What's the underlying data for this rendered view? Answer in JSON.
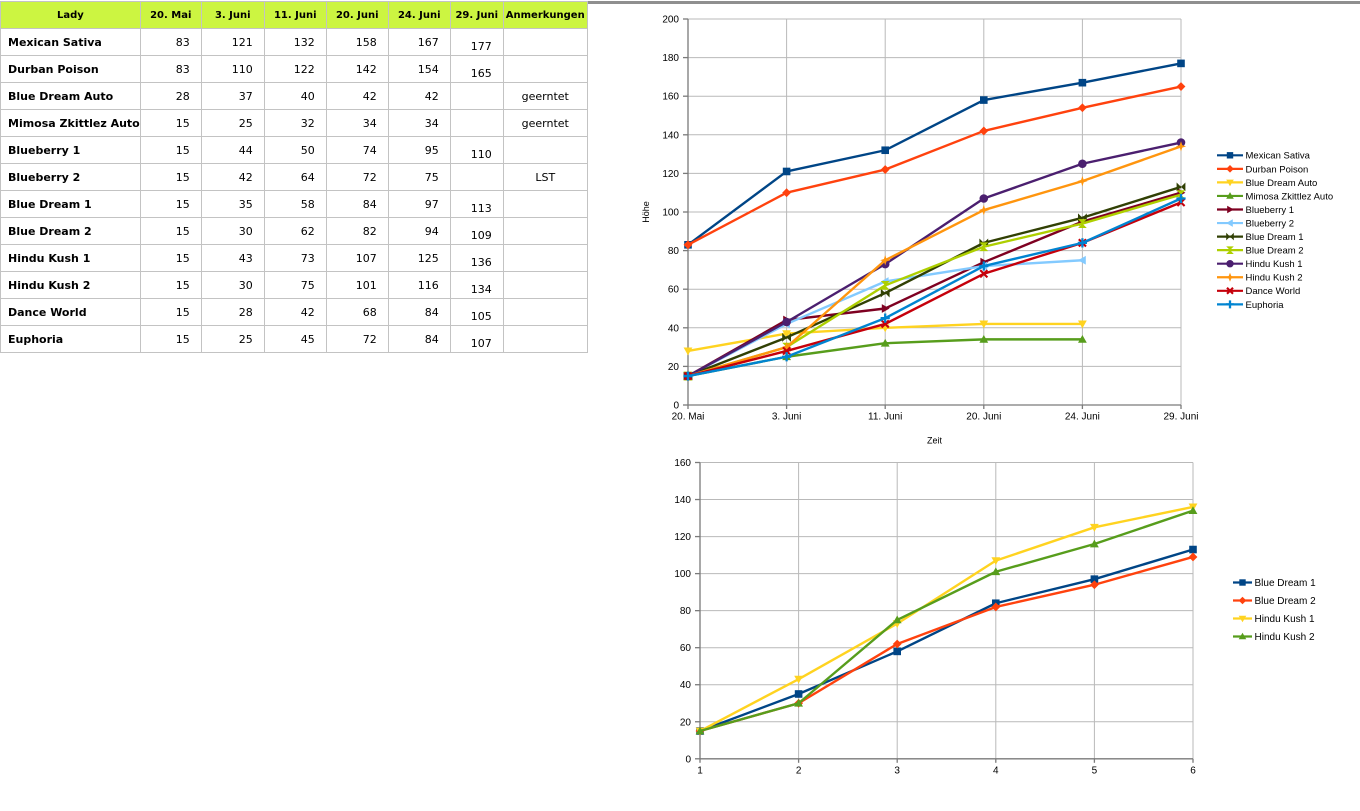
{
  "table": {
    "header_bg": "#ccf541",
    "columns": [
      "Lady",
      "20. Mai",
      "3. Juni",
      "11. Juni",
      "20. Juni",
      "24. Juni",
      "29. Juni",
      "Anmerkungen"
    ],
    "rows": [
      {
        "lady": "Mexican Sativa",
        "values": [
          83,
          121,
          132,
          158,
          167,
          177
        ],
        "anmerkung": ""
      },
      {
        "lady": "Durban Poison",
        "values": [
          83,
          110,
          122,
          142,
          154,
          165
        ],
        "anmerkung": ""
      },
      {
        "lady": "Blue Dream Auto",
        "values": [
          28,
          37,
          40,
          42,
          42,
          null
        ],
        "anmerkung": "geerntet"
      },
      {
        "lady": "Mimosa Zkittlez Auto",
        "values": [
          15,
          25,
          32,
          34,
          34,
          null
        ],
        "anmerkung": "geerntet"
      },
      {
        "lady": "Blueberry 1",
        "values": [
          15,
          44,
          50,
          74,
          95,
          110
        ],
        "anmerkung": ""
      },
      {
        "lady": "Blueberry 2",
        "values": [
          15,
          42,
          64,
          72,
          75,
          null
        ],
        "anmerkung": "LST"
      },
      {
        "lady": "Blue Dream 1",
        "values": [
          15,
          35,
          58,
          84,
          97,
          113
        ],
        "anmerkung": ""
      },
      {
        "lady": "Blue Dream 2",
        "values": [
          15,
          30,
          62,
          82,
          94,
          109
        ],
        "anmerkung": ""
      },
      {
        "lady": "Hindu Kush 1",
        "values": [
          15,
          43,
          73,
          107,
          125,
          136
        ],
        "anmerkung": ""
      },
      {
        "lady": "Hindu Kush 2",
        "values": [
          15,
          30,
          75,
          101,
          116,
          134
        ],
        "anmerkung": ""
      },
      {
        "lady": "Dance World",
        "values": [
          15,
          28,
          42,
          68,
          84,
          105
        ],
        "anmerkung": ""
      },
      {
        "lady": "Euphoria",
        "values": [
          15,
          25,
          45,
          72,
          84,
          107
        ],
        "anmerkung": ""
      }
    ]
  },
  "chart_data": [
    {
      "type": "line",
      "title": "",
      "xlabel": "Zeit",
      "ylabel": "Höhe",
      "categories": [
        "20. Mai",
        "3. Juni",
        "11. Juni",
        "20. Juni",
        "24. Juni",
        "29. Juni"
      ],
      "ylim": [
        0,
        200
      ],
      "ytick_step": 20,
      "grid": true,
      "legend_position": "right",
      "series": [
        {
          "name": "Mexican Sativa",
          "color": "#004586",
          "marker": "square",
          "values": [
            83,
            121,
            132,
            158,
            167,
            177
          ]
        },
        {
          "name": "Durban Poison",
          "color": "#ff420e",
          "marker": "diamond",
          "values": [
            83,
            110,
            122,
            142,
            154,
            165
          ]
        },
        {
          "name": "Blue Dream Auto",
          "color": "#ffd320",
          "marker": "triangle-down",
          "values": [
            28,
            37,
            40,
            42,
            42,
            null
          ]
        },
        {
          "name": "Mimosa Zkittlez Auto",
          "color": "#579d1c",
          "marker": "triangle-up",
          "values": [
            15,
            25,
            32,
            34,
            34,
            null
          ]
        },
        {
          "name": "Blueberry 1",
          "color": "#7e0021",
          "marker": "triangle-right",
          "values": [
            15,
            44,
            50,
            74,
            95,
            110
          ]
        },
        {
          "name": "Blueberry 2",
          "color": "#83caff",
          "marker": "triangle-left",
          "values": [
            15,
            42,
            64,
            72,
            75,
            null
          ]
        },
        {
          "name": "Blue Dream 1",
          "color": "#314004",
          "marker": "bowtie",
          "values": [
            15,
            35,
            58,
            84,
            97,
            113
          ]
        },
        {
          "name": "Blue Dream 2",
          "color": "#aecf00",
          "marker": "sandglass",
          "values": [
            15,
            30,
            62,
            82,
            94,
            109
          ]
        },
        {
          "name": "Hindu Kush 1",
          "color": "#4b1f6f",
          "marker": "circle",
          "values": [
            15,
            43,
            73,
            107,
            125,
            136
          ]
        },
        {
          "name": "Hindu Kush 2",
          "color": "#ff950e",
          "marker": "star",
          "values": [
            15,
            30,
            75,
            101,
            116,
            134
          ]
        },
        {
          "name": "Dance World",
          "color": "#c5000b",
          "marker": "x",
          "values": [
            15,
            28,
            42,
            68,
            84,
            105
          ]
        },
        {
          "name": "Euphoria",
          "color": "#0084d1",
          "marker": "plus",
          "values": [
            15,
            25,
            45,
            72,
            84,
            107
          ]
        }
      ]
    },
    {
      "type": "line",
      "title": "",
      "xlabel": "",
      "ylabel": "",
      "categories": [
        "1",
        "2",
        "3",
        "4",
        "5",
        "6"
      ],
      "ylim": [
        0,
        160
      ],
      "ytick_step": 20,
      "grid": true,
      "legend_position": "right",
      "series": [
        {
          "name": "Blue Dream 1",
          "color": "#004586",
          "marker": "square",
          "values": [
            15,
            35,
            58,
            84,
            97,
            113
          ]
        },
        {
          "name": "Blue Dream 2",
          "color": "#ff420e",
          "marker": "diamond",
          "values": [
            15,
            30,
            62,
            82,
            94,
            109
          ]
        },
        {
          "name": "Hindu Kush 1",
          "color": "#ffd320",
          "marker": "triangle-down",
          "values": [
            15,
            43,
            73,
            107,
            125,
            136
          ]
        },
        {
          "name": "Hindu Kush 2",
          "color": "#579d1c",
          "marker": "triangle-up",
          "values": [
            15,
            30,
            75,
            101,
            116,
            134
          ]
        }
      ]
    }
  ]
}
